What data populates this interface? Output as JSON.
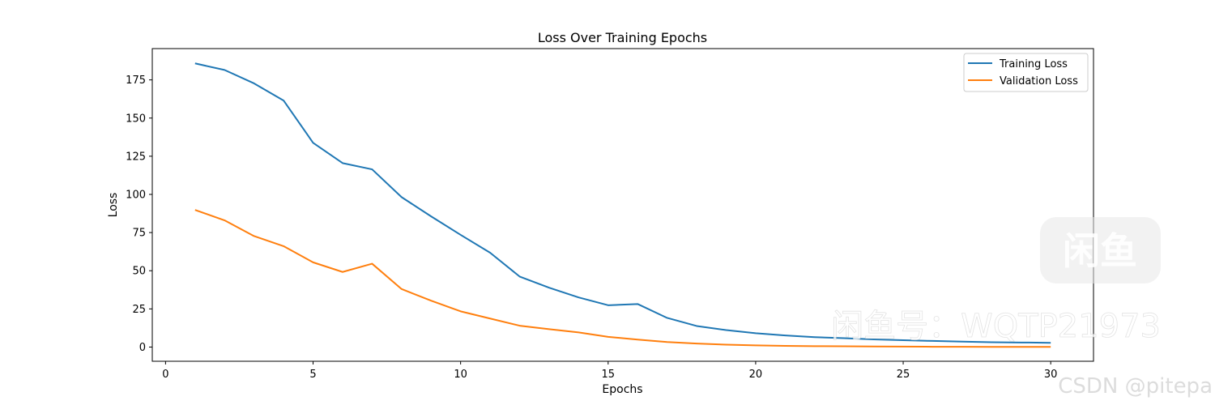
{
  "chart_data": {
    "type": "line",
    "title": "Loss Over Training Epochs",
    "xlabel": "Epochs",
    "ylabel": "Loss",
    "xlim": [
      -0.45,
      31.45
    ],
    "ylim": [
      -9.3,
      195.5
    ],
    "xticks": [
      0,
      5,
      10,
      15,
      20,
      25,
      30
    ],
    "yticks": [
      0,
      25,
      50,
      75,
      100,
      125,
      150,
      175
    ],
    "grid": false,
    "legend_position": "top-right",
    "x": [
      1,
      2,
      3,
      4,
      5,
      6,
      7,
      8,
      9,
      10,
      11,
      12,
      13,
      14,
      15,
      16,
      17,
      18,
      19,
      20,
      21,
      22,
      23,
      24,
      25,
      26,
      27,
      28,
      29,
      30
    ],
    "series": [
      {
        "name": "Training Loss",
        "color": "#1f77b4",
        "values": [
          185.8,
          181.5,
          172.7,
          161.5,
          133.8,
          120.5,
          116.4,
          98.2,
          85.6,
          73.5,
          61.8,
          46.2,
          38.9,
          32.5,
          27.4,
          28.2,
          19.1,
          13.8,
          11.1,
          9.1,
          7.6,
          6.5,
          5.8,
          5.0,
          4.5,
          4.0,
          3.6,
          3.2,
          3.0,
          2.8
        ]
      },
      {
        "name": "Validation Loss",
        "color": "#ff7f0e",
        "values": [
          89.8,
          83.0,
          72.7,
          66.1,
          55.5,
          49.2,
          54.6,
          38.0,
          30.4,
          23.4,
          18.7,
          14.0,
          11.7,
          9.6,
          6.7,
          4.9,
          3.3,
          2.3,
          1.6,
          1.1,
          0.8,
          0.6,
          0.5,
          0.4,
          0.3,
          0.2,
          0.2,
          0.1,
          0.1,
          0.1
        ]
      }
    ]
  },
  "watermarks": {
    "xianyu_id": "闲鱼号：WQTP21973",
    "csdn": "CSDN @pitepa",
    "logo_text": "闲鱼"
  }
}
